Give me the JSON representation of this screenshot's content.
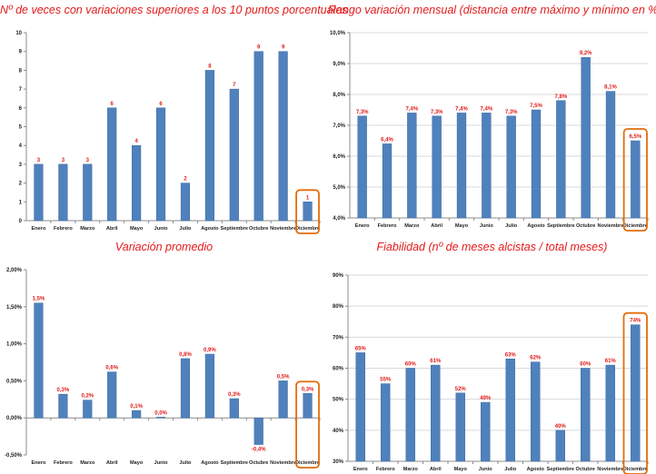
{
  "colors": {
    "title": "#e31a1a",
    "bar": "#4f81bd",
    "bar_edge": "#3b6aa0",
    "data_label": "#e31a1a",
    "highlight": "#e46c0a",
    "axis": "#8c8c8c",
    "grid": "#d9d9d9",
    "tick_text": "#222222"
  },
  "chart_data": [
    {
      "type": "bar",
      "title": "Nº de veces con variaciones superiores a los 10 puntos porcentuales",
      "categories": [
        "Enero",
        "Febrero",
        "Marzo",
        "Abril",
        "Mayo",
        "Junio",
        "Julio",
        "Agosto",
        "Septiembre",
        "Octubre",
        "Noviembre",
        "Diciembre"
      ],
      "values": [
        3,
        3,
        3,
        6,
        4,
        6,
        2,
        8,
        7,
        9,
        9,
        1
      ],
      "labels": [
        "3",
        "3",
        "3",
        "6",
        "4",
        "6",
        "2",
        "8",
        "7",
        "9",
        "9",
        "1"
      ],
      "ylim": [
        0,
        10
      ],
      "yticks": [
        0,
        1,
        2,
        3,
        4,
        5,
        6,
        7,
        8,
        9,
        10
      ],
      "yticklabels": [
        "0",
        "1",
        "2",
        "3",
        "4",
        "5",
        "6",
        "7",
        "8",
        "9",
        "10"
      ],
      "grid": false,
      "highlight": "Diciembre"
    },
    {
      "type": "bar",
      "title": "Rango variación mensual (distancia entre máximo y mínimo en %)",
      "categories": [
        "Enero",
        "Febrero",
        "Marzo",
        "Abril",
        "Mayo",
        "Junio",
        "Julio",
        "Agosto",
        "Septiembre",
        "Octubre",
        "Noviembre",
        "Diciembre"
      ],
      "values": [
        7.3,
        6.4,
        7.4,
        7.3,
        7.4,
        7.4,
        7.3,
        7.5,
        7.8,
        9.2,
        8.1,
        6.5
      ],
      "labels": [
        "7,3%",
        "6,4%",
        "7,4%",
        "7,3%",
        "7,4%",
        "7,4%",
        "7,3%",
        "7,5%",
        "7,8%",
        "9,2%",
        "8,1%",
        "6,5%"
      ],
      "ylim": [
        4,
        10
      ],
      "yticks": [
        4,
        5,
        6,
        7,
        8,
        9,
        10
      ],
      "yticklabels": [
        "4,0%",
        "5,0%",
        "6,0%",
        "7,0%",
        "8,0%",
        "9,0%",
        "10,0%"
      ],
      "grid": true,
      "highlight": "Diciembre"
    },
    {
      "type": "bar",
      "title": "Variación promedio",
      "categories": [
        "Enero",
        "Febrero",
        "Marzo",
        "Abril",
        "Mayo",
        "Junio",
        "Julio",
        "Agosto",
        "Septiembre",
        "Octubre",
        "Noviembre",
        "Diciembre"
      ],
      "values": [
        1.55,
        0.32,
        0.24,
        0.62,
        0.1,
        0.01,
        0.8,
        0.86,
        0.26,
        -0.36,
        0.5,
        0.33
      ],
      "labels": [
        "1,5%",
        "0,3%",
        "0,2%",
        "0,6%",
        "0,1%",
        "0,0%",
        "0,8%",
        "0,9%",
        "0,3%",
        "-0,4%",
        "0,5%",
        "0,3%"
      ],
      "ylim": [
        -0.5,
        2
      ],
      "yticks": [
        -0.5,
        0,
        0.5,
        1,
        1.5,
        2
      ],
      "yticklabels": [
        "-0,50%",
        "0,00%",
        "0,50%",
        "1,00%",
        "1,50%",
        "2,00%"
      ],
      "grid": false,
      "highlight": "Diciembre"
    },
    {
      "type": "bar",
      "title": "Fiabilidad (nº de meses alcistas / total meses)",
      "categories": [
        "Enero",
        "Febrero",
        "Marzo",
        "Abril",
        "Mayo",
        "Junio",
        "Julio",
        "Agosto",
        "Septiembre",
        "Octubre",
        "Noviembre",
        "Diciembre"
      ],
      "values": [
        65,
        55,
        60,
        61,
        52,
        49,
        63,
        62,
        40,
        60,
        61,
        74
      ],
      "labels": [
        "65%",
        "55%",
        "60%",
        "61%",
        "52%",
        "49%",
        "63%",
        "62%",
        "40%",
        "60%",
        "61%",
        "74%"
      ],
      "ylim": [
        30,
        90
      ],
      "yticks": [
        30,
        40,
        50,
        60,
        70,
        80,
        90
      ],
      "yticklabels": [
        "30%",
        "40%",
        "50%",
        "60%",
        "70%",
        "80%",
        "90%"
      ],
      "grid": true,
      "highlight": "Diciembre"
    }
  ]
}
